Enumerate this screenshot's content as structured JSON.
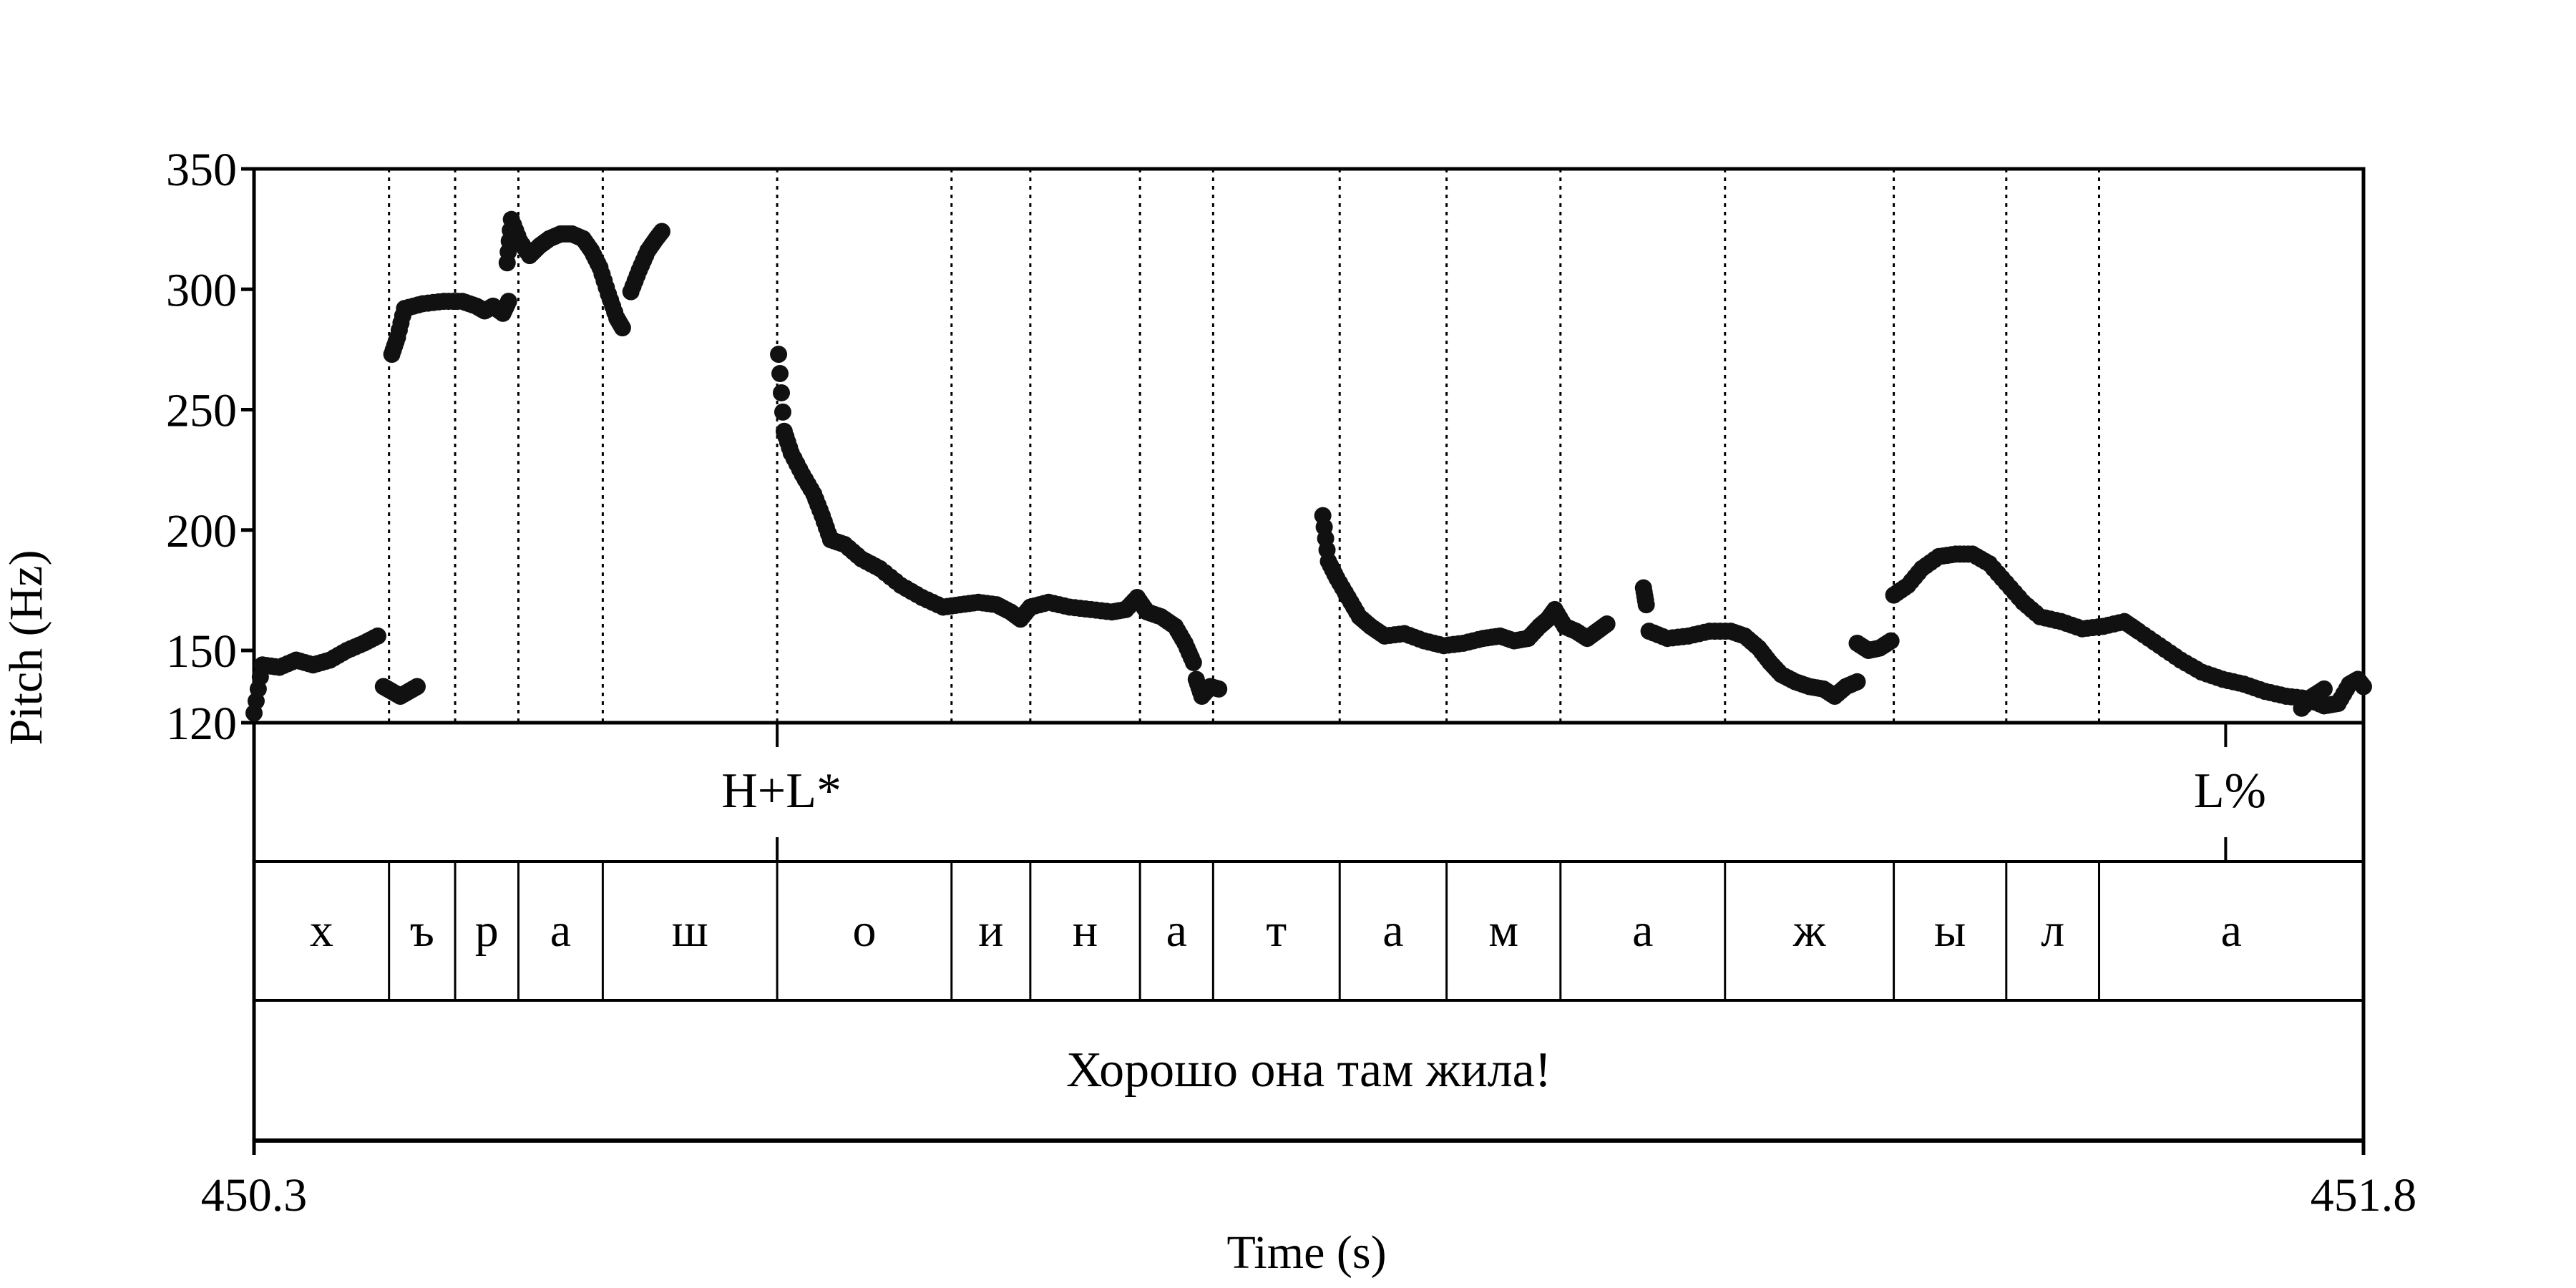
{
  "chart_data": {
    "type": "scatter",
    "ylabel": "Pitch (Hz)",
    "xlabel": "Time (s)",
    "xlim": [
      450.3,
      451.8
    ],
    "ylim": [
      120,
      350
    ],
    "yticks": [
      350,
      300,
      250,
      200,
      150,
      120
    ],
    "xtick_labels": [
      "450.3",
      "451.8"
    ],
    "segment_boundaries": [
      450.396,
      450.443,
      450.488,
      450.548,
      450.672,
      450.796,
      450.852,
      450.93,
      450.982,
      451.072,
      451.148,
      451.229,
      451.346,
      451.466,
      451.546,
      451.612
    ],
    "tones": [
      {
        "time": 450.672,
        "label": "H+L*"
      },
      {
        "time": 451.702,
        "label": "L%"
      }
    ],
    "segments": [
      "х",
      "ъ",
      "р",
      "а",
      "ш",
      "о",
      "и",
      "н",
      "а",
      "т",
      "а",
      "м",
      "а",
      "ж",
      "ы",
      "л",
      "а"
    ],
    "utterance": "Хорошо она там жила!",
    "pitch_runs": [
      [
        [
          450.3,
          124
        ],
        [
          450.306,
          144
        ],
        [
          450.318,
          143
        ],
        [
          450.33,
          146
        ],
        [
          450.342,
          144
        ],
        [
          450.354,
          146
        ],
        [
          450.366,
          150
        ],
        [
          450.378,
          153
        ],
        [
          450.388,
          156
        ]
      ],
      [
        [
          450.392,
          135
        ],
        [
          450.398,
          133
        ],
        [
          450.404,
          131
        ],
        [
          450.41,
          133
        ],
        [
          450.416,
          135
        ]
      ],
      [
        [
          450.398,
          273
        ],
        [
          450.402,
          280
        ],
        [
          450.407,
          292
        ],
        [
          450.42,
          294
        ],
        [
          450.435,
          295
        ],
        [
          450.448,
          295
        ],
        [
          450.458,
          293
        ],
        [
          450.464,
          291
        ],
        [
          450.47,
          293
        ],
        [
          450.477,
          290
        ],
        [
          450.481,
          295
        ]
      ],
      [
        [
          450.48,
          311
        ],
        [
          450.483,
          329
        ],
        [
          450.489,
          320
        ],
        [
          450.496,
          314
        ],
        [
          450.503,
          318
        ],
        [
          450.51,
          321
        ],
        [
          450.518,
          323
        ],
        [
          450.526,
          323
        ],
        [
          450.534,
          321
        ],
        [
          450.54,
          316
        ],
        [
          450.546,
          309
        ],
        [
          450.552,
          298
        ],
        [
          450.558,
          288
        ],
        [
          450.562,
          284
        ]
      ],
      [
        [
          450.568,
          299
        ],
        [
          450.574,
          308
        ],
        [
          450.58,
          316
        ],
        [
          450.586,
          321
        ],
        [
          450.59,
          324
        ]
      ],
      [
        [
          450.673,
          273
        ],
        [
          450.677,
          241
        ],
        [
          450.682,
          232
        ],
        [
          450.69,
          223
        ],
        [
          450.698,
          215
        ],
        [
          450.704,
          206
        ],
        [
          450.71,
          196
        ],
        [
          450.72,
          194
        ],
        [
          450.732,
          188
        ],
        [
          450.745,
          184
        ],
        [
          450.76,
          177
        ],
        [
          450.775,
          172
        ],
        [
          450.79,
          168
        ],
        [
          450.802,
          169
        ],
        [
          450.815,
          170
        ],
        [
          450.828,
          169
        ],
        [
          450.838,
          166
        ],
        [
          450.845,
          163
        ],
        [
          450.852,
          168
        ],
        [
          450.865,
          170
        ],
        [
          450.88,
          168
        ],
        [
          450.895,
          167
        ],
        [
          450.91,
          166
        ],
        [
          450.92,
          167
        ],
        [
          450.928,
          172
        ],
        [
          450.935,
          166
        ],
        [
          450.945,
          164
        ],
        [
          450.955,
          160
        ],
        [
          450.962,
          153
        ],
        [
          450.968,
          145
        ]
      ],
      [
        [
          450.97,
          138
        ],
        [
          450.974,
          131
        ],
        [
          450.98,
          135
        ],
        [
          450.986,
          134
        ]
      ],
      [
        [
          451.06,
          206
        ],
        [
          451.064,
          187
        ],
        [
          451.07,
          180
        ],
        [
          451.078,
          172
        ],
        [
          451.086,
          164
        ],
        [
          451.094,
          160
        ],
        [
          451.104,
          156
        ],
        [
          451.118,
          157
        ],
        [
          451.132,
          154
        ],
        [
          451.146,
          152
        ],
        [
          451.16,
          153
        ],
        [
          451.174,
          155
        ],
        [
          451.186,
          156
        ],
        [
          451.196,
          154
        ],
        [
          451.206,
          155
        ],
        [
          451.214,
          160
        ],
        [
          451.22,
          163
        ],
        [
          451.225,
          167
        ],
        [
          451.232,
          160
        ],
        [
          451.24,
          158
        ],
        [
          451.248,
          155
        ],
        [
          451.255,
          158
        ],
        [
          451.262,
          161
        ]
      ],
      [
        [
          451.288,
          176
        ],
        [
          451.29,
          169
        ]
      ],
      [
        [
          451.292,
          158
        ],
        [
          451.305,
          155
        ],
        [
          451.32,
          156
        ],
        [
          451.335,
          158
        ],
        [
          451.35,
          158
        ],
        [
          451.36,
          156
        ],
        [
          451.37,
          151
        ],
        [
          451.378,
          145
        ],
        [
          451.386,
          140
        ],
        [
          451.396,
          137
        ],
        [
          451.406,
          135
        ],
        [
          451.416,
          134
        ],
        [
          451.424,
          131
        ],
        [
          451.432,
          135
        ],
        [
          451.44,
          137
        ]
      ],
      [
        [
          451.44,
          153
        ],
        [
          451.448,
          150
        ],
        [
          451.456,
          151
        ],
        [
          451.464,
          154
        ]
      ],
      [
        [
          451.466,
          173
        ],
        [
          451.476,
          177
        ],
        [
          451.486,
          184
        ],
        [
          451.498,
          189
        ],
        [
          451.51,
          190
        ],
        [
          451.522,
          190
        ],
        [
          451.534,
          186
        ],
        [
          451.546,
          178
        ],
        [
          451.558,
          170
        ],
        [
          451.57,
          164
        ],
        [
          451.585,
          162
        ],
        [
          451.6,
          159
        ],
        [
          451.615,
          160
        ],
        [
          451.63,
          162
        ],
        [
          451.64,
          158
        ],
        [
          451.655,
          152
        ],
        [
          451.67,
          146
        ],
        [
          451.685,
          141
        ],
        [
          451.7,
          138
        ],
        [
          451.715,
          136
        ],
        [
          451.73,
          133
        ],
        [
          451.745,
          131
        ],
        [
          451.76,
          130
        ],
        [
          451.772,
          127
        ],
        [
          451.782,
          128
        ],
        [
          451.79,
          136
        ],
        [
          451.796,
          138
        ],
        [
          451.8,
          135
        ]
      ],
      [
        [
          451.756,
          126
        ],
        [
          451.764,
          131
        ],
        [
          451.772,
          134
        ]
      ]
    ]
  }
}
